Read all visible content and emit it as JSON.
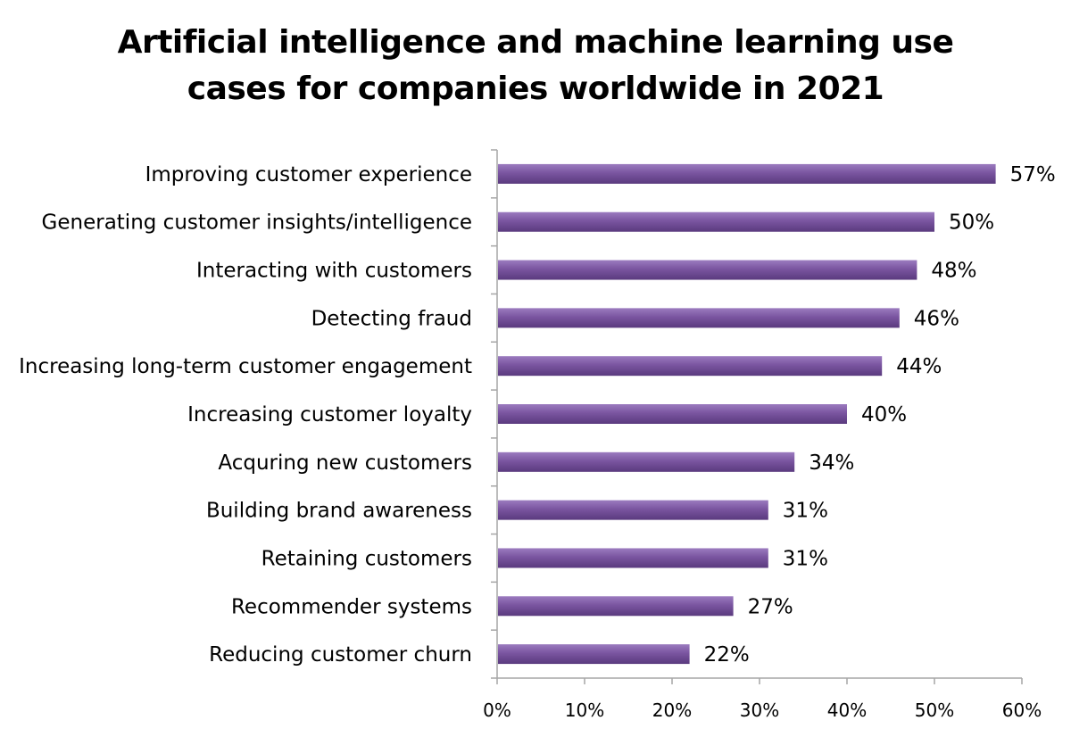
{
  "chart_data": {
    "type": "bar",
    "orientation": "horizontal",
    "title": "Artificial intelligence and machine learning use\ncases for companies worldwide in 2021",
    "xlabel": "",
    "ylabel": "",
    "categories": [
      "Improving customer experience",
      "Generating customer insights/intelligence",
      "Interacting with customers",
      "Detecting fraud",
      "Increasing long-term customer engagement",
      "Increasing customer loyalty",
      "Acquring new customers",
      "Building brand awareness",
      "Retaining customers",
      "Recommender systems",
      "Reducing customer churn"
    ],
    "values": [
      57,
      50,
      48,
      46,
      44,
      40,
      34,
      31,
      31,
      27,
      22
    ],
    "value_labels": [
      "57%",
      "50%",
      "48%",
      "46%",
      "44%",
      "40%",
      "34%",
      "31%",
      "31%",
      "27%",
      "22%"
    ],
    "xlim": [
      0,
      60
    ],
    "x_ticks": [
      0,
      10,
      20,
      30,
      40,
      50,
      60
    ],
    "x_tick_labels": [
      "0%",
      "10%",
      "20%",
      "30%",
      "40%",
      "50%",
      "60%"
    ],
    "grid": false,
    "legend": "none",
    "bar_color": "#7a55a0",
    "bar_highlight_color": "#9b7bbf",
    "bar_shadow_color": "#5a3a7e",
    "axis_color": "#a6a6a6"
  }
}
